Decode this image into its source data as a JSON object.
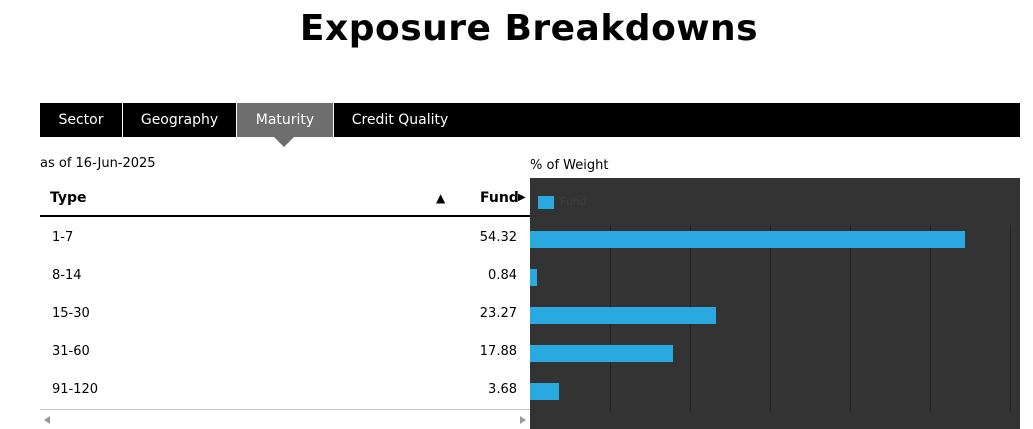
{
  "title": "Exposure Breakdowns",
  "tabs": [
    {
      "label": "Sector"
    },
    {
      "label": "Geography"
    },
    {
      "label": "Maturity"
    },
    {
      "label": "Credit Quality"
    }
  ],
  "active_tab": "Maturity",
  "as_of": "as of 16-Jun-2025",
  "weight_label": "% of Weight",
  "table": {
    "headers": {
      "type": "Type",
      "fund": "Fund"
    },
    "sort_arrow": "▲",
    "rows": [
      {
        "type": "1-7",
        "fund": "54.32"
      },
      {
        "type": "8-14",
        "fund": "0.84"
      },
      {
        "type": "15-30",
        "fund": "23.27"
      },
      {
        "type": "31-60",
        "fund": "17.88"
      },
      {
        "type": "91-120",
        "fund": "3.68"
      }
    ]
  },
  "colors": {
    "bar": "#29a9e0",
    "chart_bg": "#333333",
    "tab_bar": "#000000",
    "active_tab": "#6e6e6e"
  },
  "chart_data": {
    "type": "bar",
    "orientation": "horizontal",
    "categories": [
      "1-7",
      "8-14",
      "15-30",
      "31-60",
      "91-120"
    ],
    "series": [
      {
        "name": "Fund",
        "values": [
          54.32,
          0.84,
          23.27,
          17.88,
          3.68
        ]
      }
    ],
    "xlim": [
      0,
      60
    ],
    "ylabel": "% of Weight",
    "grid": true,
    "legend": "top-left"
  }
}
